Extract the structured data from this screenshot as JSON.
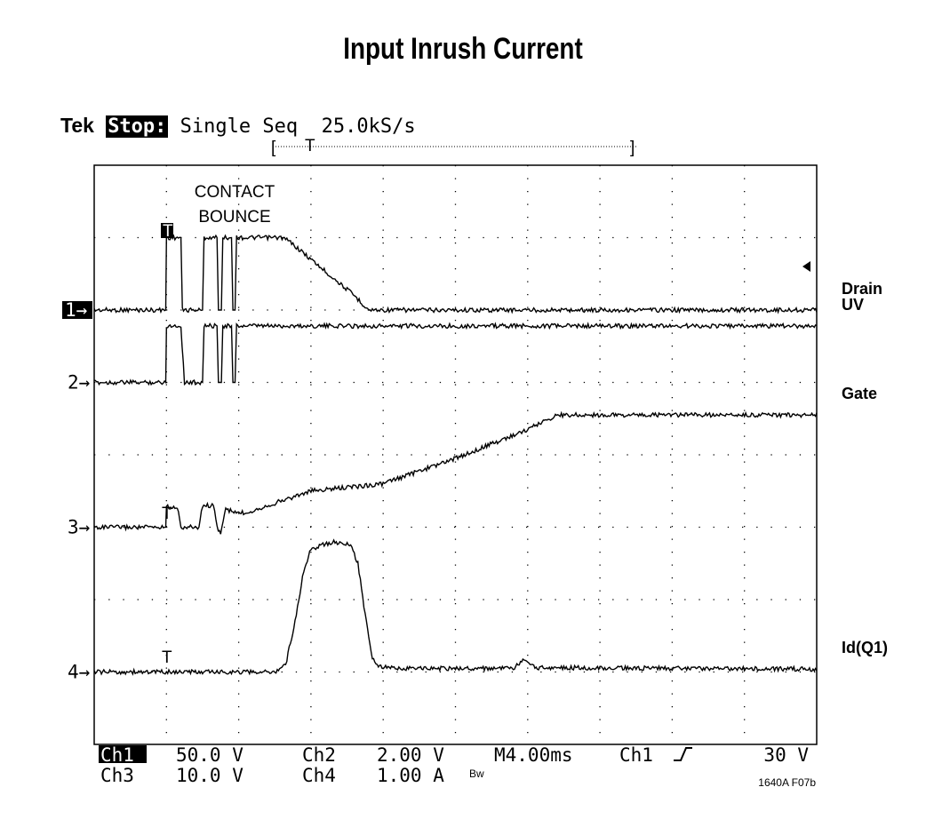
{
  "chart_data": {
    "type": "line",
    "title": "Input Inrush Current",
    "scope": {
      "brand": "Tek",
      "state": "Stop:",
      "mode": "Single Seq",
      "sample_rate": "25.0kS/s"
    },
    "x_divisions": 10,
    "y_divisions": 8,
    "time_per_div_ms": 4.0,
    "grid": true,
    "annotation": {
      "line1": "CONTACT",
      "line2": "BOUNCE"
    },
    "channel_markers": [
      "1",
      "2",
      "3",
      "4"
    ],
    "trigger_marker": "T",
    "series": [
      {
        "name": "Drain",
        "channel": "1",
        "baseline_div": 6.0,
        "points": [
          [
            0,
            6.0
          ],
          [
            0.99,
            6.0
          ],
          [
            1.0,
            7.0
          ],
          [
            1.2,
            7.0
          ],
          [
            1.22,
            6.0
          ],
          [
            1.5,
            6.0
          ],
          [
            1.52,
            7.0
          ],
          [
            1.7,
            7.0
          ],
          [
            1.72,
            6.0
          ],
          [
            1.76,
            6.0
          ],
          [
            1.78,
            7.0
          ],
          [
            1.9,
            7.0
          ],
          [
            1.92,
            6.0
          ],
          [
            1.95,
            6.0
          ],
          [
            1.97,
            7.0
          ],
          [
            2.6,
            7.0
          ],
          [
            2.7,
            6.95
          ],
          [
            3.0,
            6.7
          ],
          [
            3.6,
            6.2
          ],
          [
            3.8,
            6.0
          ],
          [
            10,
            6.0
          ]
        ]
      },
      {
        "name": "UV",
        "channel": "2",
        "baseline_div": 5.0,
        "points": [
          [
            0,
            5.0
          ],
          [
            0.99,
            5.0
          ],
          [
            1.0,
            5.78
          ],
          [
            1.2,
            5.78
          ],
          [
            1.25,
            5.0
          ],
          [
            1.5,
            5.0
          ],
          [
            1.52,
            5.78
          ],
          [
            1.7,
            5.78
          ],
          [
            1.72,
            5.0
          ],
          [
            1.76,
            5.0
          ],
          [
            1.78,
            5.78
          ],
          [
            1.9,
            5.78
          ],
          [
            1.92,
            5.0
          ],
          [
            1.95,
            5.0
          ],
          [
            1.97,
            5.78
          ],
          [
            10,
            5.78
          ]
        ]
      },
      {
        "name": "Gate",
        "channel": "3",
        "baseline_div": 3.0,
        "points": [
          [
            0,
            3.0
          ],
          [
            0.99,
            3.0
          ],
          [
            1.0,
            3.28
          ],
          [
            1.15,
            3.28
          ],
          [
            1.2,
            3.0
          ],
          [
            1.45,
            3.0
          ],
          [
            1.5,
            3.3
          ],
          [
            1.65,
            3.3
          ],
          [
            1.7,
            3.0
          ],
          [
            1.75,
            2.92
          ],
          [
            1.82,
            3.25
          ],
          [
            1.95,
            3.2
          ],
          [
            2.1,
            3.2
          ],
          [
            3.0,
            3.5
          ],
          [
            4.0,
            3.6
          ],
          [
            5.0,
            3.95
          ],
          [
            6.0,
            4.35
          ],
          [
            6.4,
            4.55
          ],
          [
            10,
            4.55
          ]
        ]
      },
      {
        "name": "Id(Q1)",
        "channel": "4",
        "baseline_div": 1.0,
        "points": [
          [
            0,
            1.0
          ],
          [
            2.5,
            1.0
          ],
          [
            2.65,
            1.1
          ],
          [
            2.78,
            1.7
          ],
          [
            2.9,
            2.4
          ],
          [
            3.0,
            2.7
          ],
          [
            3.3,
            2.8
          ],
          [
            3.55,
            2.75
          ],
          [
            3.65,
            2.5
          ],
          [
            3.75,
            1.8
          ],
          [
            3.85,
            1.2
          ],
          [
            3.95,
            1.07
          ],
          [
            4.2,
            1.05
          ],
          [
            5.8,
            1.05
          ],
          [
            5.95,
            1.16
          ],
          [
            6.1,
            1.06
          ],
          [
            10,
            1.04
          ]
        ]
      }
    ],
    "footer": {
      "row1": [
        "Ch1",
        "50.0 V",
        "Ch2",
        "2.00 V",
        "M4.00ms",
        "Ch1",
        "30 V"
      ],
      "row2": [
        "Ch3",
        "10.0 V",
        "Ch4",
        "1.00 A"
      ],
      "bw": "Bw",
      "figure_id": "1640A F07b"
    }
  }
}
